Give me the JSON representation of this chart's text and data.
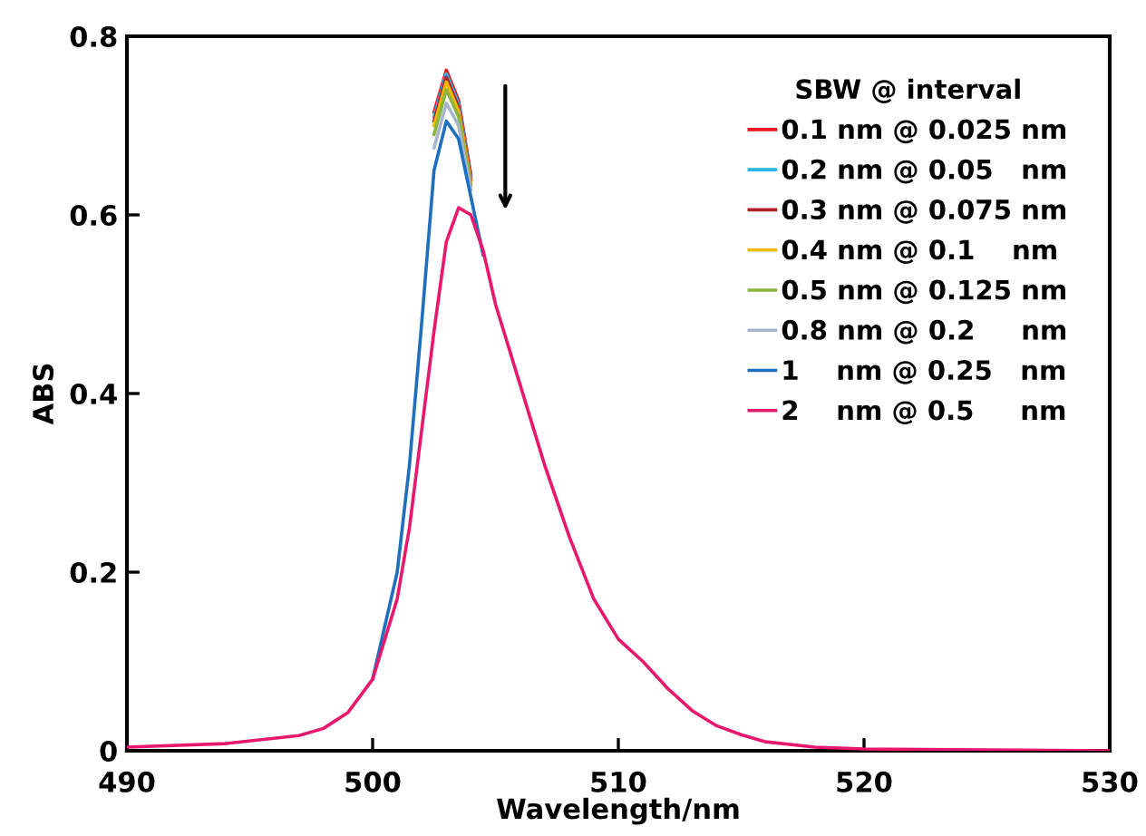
{
  "chart_data": {
    "type": "line",
    "xlabel": "Wavelength/nm",
    "ylabel": "ABS",
    "legend_title": "SBW @ interval",
    "legend": "top right",
    "grid": false,
    "marker": "none",
    "line_style": "solid",
    "x": [
      490,
      494,
      497,
      498,
      499,
      500,
      501,
      501.5,
      502,
      502.5,
      503,
      503.5,
      504,
      504.5,
      505,
      505.5,
      506,
      507,
      508,
      509,
      510,
      511,
      512,
      513,
      514,
      515,
      516,
      518,
      520,
      525,
      530
    ],
    "xlim": [
      490,
      530
    ],
    "xticks": [
      490,
      500,
      510,
      520,
      530
    ],
    "ylim": [
      0,
      0.8
    ],
    "yticks": [
      0,
      0.2,
      0.4,
      0.6,
      0.8
    ],
    "series": [
      {
        "name": "0.1 nm @ 0.025 nm",
        "color": "#e8141c",
        "values": [
          null,
          null,
          null,
          null,
          null,
          null,
          null,
          null,
          null,
          0.715,
          0.762,
          0.728,
          0.645,
          null,
          null,
          null,
          null,
          null,
          null,
          null,
          null,
          null,
          null,
          null,
          null,
          null,
          null,
          null,
          null,
          null,
          null
        ]
      },
      {
        "name": "0.2 nm @ 0.05   nm",
        "color": "#2eb4ea",
        "values": [
          null,
          null,
          null,
          null,
          null,
          null,
          null,
          null,
          null,
          0.71,
          0.758,
          0.724,
          0.642,
          null,
          null,
          null,
          null,
          null,
          null,
          null,
          null,
          null,
          null,
          null,
          null,
          null,
          null,
          null,
          null,
          null,
          null
        ]
      },
      {
        "name": "0.3 nm @ 0.075 nm",
        "color": "#b01e2a",
        "values": [
          null,
          null,
          null,
          null,
          null,
          null,
          null,
          null,
          null,
          0.705,
          0.754,
          0.72,
          0.639,
          null,
          null,
          null,
          null,
          null,
          null,
          null,
          null,
          null,
          null,
          null,
          null,
          null,
          null,
          null,
          null,
          null,
          null
        ]
      },
      {
        "name": "0.4 nm @ 0.1    nm",
        "color": "#f5b800",
        "values": [
          null,
          null,
          null,
          null,
          null,
          null,
          null,
          null,
          null,
          0.7,
          0.749,
          0.716,
          0.636,
          null,
          null,
          null,
          null,
          null,
          null,
          null,
          null,
          null,
          null,
          null,
          null,
          null,
          null,
          null,
          null,
          null,
          null
        ]
      },
      {
        "name": "0.5 nm @ 0.125 nm",
        "color": "#8cb43c",
        "values": [
          null,
          null,
          null,
          null,
          null,
          null,
          null,
          null,
          null,
          0.69,
          0.74,
          0.71,
          0.633,
          null,
          null,
          null,
          null,
          null,
          null,
          null,
          null,
          null,
          null,
          null,
          null,
          null,
          null,
          null,
          null,
          null,
          null
        ]
      },
      {
        "name": "0.8 nm @ 0.2     nm",
        "color": "#a6b4cc",
        "values": [
          null,
          null,
          null,
          null,
          null,
          null,
          null,
          null,
          null,
          0.675,
          0.725,
          0.7,
          0.628,
          null,
          null,
          null,
          null,
          null,
          null,
          null,
          null,
          null,
          null,
          null,
          null,
          null,
          null,
          null,
          null,
          null,
          null
        ]
      },
      {
        "name": "1    nm @ 0.25   nm",
        "color": "#1f6fbf",
        "values": [
          null,
          null,
          null,
          null,
          null,
          0.08,
          0.2,
          0.32,
          0.48,
          0.65,
          0.705,
          0.685,
          0.62,
          0.555,
          null,
          null,
          null,
          null,
          null,
          null,
          null,
          null,
          null,
          null,
          null,
          null,
          null,
          null,
          null,
          null,
          null
        ]
      },
      {
        "name": "2    nm @ 0.5     nm",
        "color": "#e8186c",
        "values": [
          0.004,
          0.008,
          0.017,
          0.025,
          0.043,
          0.08,
          0.17,
          0.25,
          0.36,
          0.47,
          0.57,
          0.608,
          0.6,
          0.56,
          0.5,
          0.455,
          0.41,
          0.32,
          0.24,
          0.17,
          0.125,
          0.1,
          0.07,
          0.045,
          0.028,
          0.018,
          0.01,
          0.004,
          0.002,
          0.001,
          0
        ]
      }
    ]
  }
}
